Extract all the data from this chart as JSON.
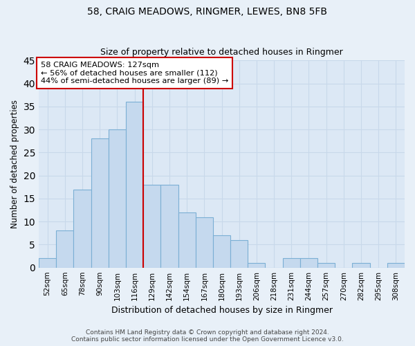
{
  "title": "58, CRAIG MEADOWS, RINGMER, LEWES, BN8 5FB",
  "subtitle": "Size of property relative to detached houses in Ringmer",
  "xlabel": "Distribution of detached houses by size in Ringmer",
  "ylabel": "Number of detached properties",
  "bin_labels": [
    "52sqm",
    "65sqm",
    "78sqm",
    "90sqm",
    "103sqm",
    "116sqm",
    "129sqm",
    "142sqm",
    "154sqm",
    "167sqm",
    "180sqm",
    "193sqm",
    "206sqm",
    "218sqm",
    "231sqm",
    "244sqm",
    "257sqm",
    "270sqm",
    "282sqm",
    "295sqm",
    "308sqm"
  ],
  "bar_values": [
    2,
    8,
    17,
    28,
    30,
    36,
    18,
    18,
    12,
    11,
    7,
    6,
    1,
    0,
    2,
    2,
    1,
    0,
    1,
    0,
    1
  ],
  "bar_color": "#c5d9ee",
  "bar_edge_color": "#7bafd4",
  "vline_color": "#cc0000",
  "ylim": [
    0,
    45
  ],
  "yticks": [
    0,
    5,
    10,
    15,
    20,
    25,
    30,
    35,
    40,
    45
  ],
  "annotation_title": "58 CRAIG MEADOWS: 127sqm",
  "annotation_line1": "← 56% of detached houses are smaller (112)",
  "annotation_line2": "44% of semi-detached houses are larger (89) →",
  "annotation_box_color": "#ffffff",
  "annotation_box_edge": "#cc0000",
  "footer_line1": "Contains HM Land Registry data © Crown copyright and database right 2024.",
  "footer_line2": "Contains public sector information licensed under the Open Government Licence v3.0.",
  "background_color": "#e8f0f8",
  "plot_background": "#dce8f5",
  "grid_color": "#c8d8ea"
}
